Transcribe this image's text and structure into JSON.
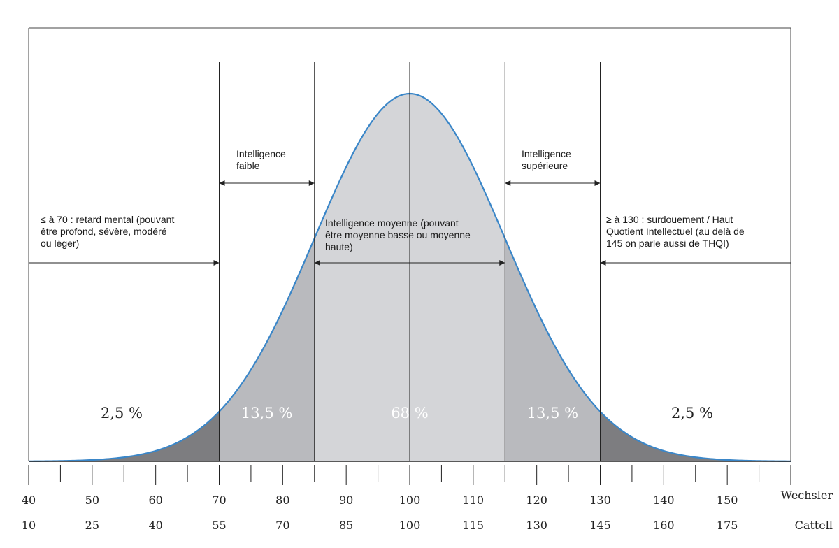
{
  "chart_data": {
    "type": "area",
    "distribution": "normal",
    "mean": 100,
    "sd": 15,
    "xlim": [
      40,
      160
    ],
    "boundaries": [
      70,
      85,
      115,
      130
    ],
    "axes": [
      {
        "name": "Wechsler",
        "ticks": [
          40,
          50,
          60,
          70,
          80,
          90,
          100,
          110,
          120,
          130,
          140,
          150
        ]
      },
      {
        "name": "Cattell",
        "ticks": [
          10,
          25,
          40,
          55,
          70,
          85,
          100,
          115,
          130,
          145,
          160,
          175
        ]
      }
    ],
    "regions": [
      {
        "from": 40,
        "to": 70,
        "percent_label": "2,5 %",
        "color": "#7d7d80"
      },
      {
        "from": 70,
        "to": 85,
        "percent_label": "13,5 %",
        "color": "#b9babe"
      },
      {
        "from": 85,
        "to": 115,
        "percent_label": "68 %",
        "color": "#d4d5d8"
      },
      {
        "from": 115,
        "to": 130,
        "percent_label": "13,5 %",
        "color": "#b9babe"
      },
      {
        "from": 130,
        "to": 160,
        "percent_label": "2,5 %",
        "color": "#7d7d80"
      }
    ],
    "annotations": [
      {
        "lines": [
          "≤ à 70 : retard mental (pouvant",
          "être profond, sévère, modéré",
          "ou léger)"
        ]
      },
      {
        "lines": [
          "Intelligence",
          "faible"
        ]
      },
      {
        "lines": [
          "Intelligence moyenne (pouvant",
          "être moyenne basse ou moyenne",
          "haute)"
        ]
      },
      {
        "lines": [
          "Intelligence",
          "supérieure"
        ]
      },
      {
        "lines": [
          "≥ à 130 : surdouement / Haut",
          "Quotient Intellectuel (au delà de",
          "145 on parle aussi de THQI)"
        ]
      }
    ],
    "curve_color": "#3a86c8",
    "grid": false
  }
}
